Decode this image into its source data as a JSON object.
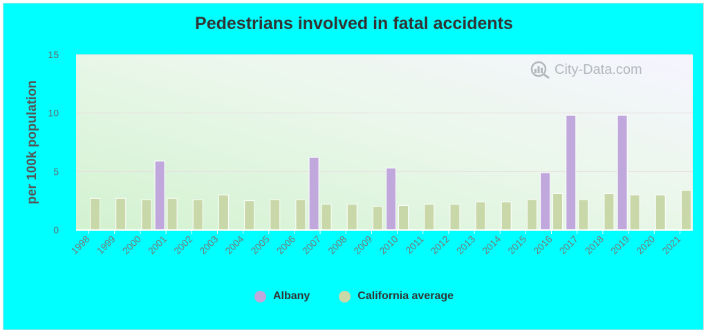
{
  "chart_data": {
    "type": "bar",
    "title": "Pedestrians involved in fatal accidents",
    "ylabel": "per 100k population",
    "xlabel": "",
    "ylim": [
      0,
      15
    ],
    "yticks": [
      "0",
      "5",
      "10",
      "15"
    ],
    "categories": [
      "1998",
      "1999",
      "2000",
      "2001",
      "2002",
      "2003",
      "2004",
      "2005",
      "2006",
      "2007",
      "2008",
      "2009",
      "2010",
      "2011",
      "2012",
      "2013",
      "2014",
      "2015",
      "2016",
      "2017",
      "2018",
      "2019",
      "2020",
      "2021"
    ],
    "series": [
      {
        "name": "Albany",
        "color": "#c0a8dc",
        "values": [
          null,
          null,
          null,
          5.9,
          null,
          null,
          null,
          null,
          null,
          6.2,
          null,
          null,
          5.3,
          null,
          null,
          null,
          null,
          null,
          4.9,
          9.8,
          null,
          9.8,
          null,
          null
        ]
      },
      {
        "name": "California average",
        "color": "#c8d8a8",
        "values": [
          2.7,
          2.7,
          2.6,
          2.7,
          2.6,
          3.0,
          2.5,
          2.6,
          2.6,
          2.2,
          2.2,
          2.0,
          2.1,
          2.2,
          2.2,
          2.4,
          2.4,
          2.6,
          3.1,
          2.6,
          3.1,
          3.0,
          3.0,
          3.4
        ]
      }
    ],
    "grid": true,
    "legend_position": "bottom"
  },
  "watermark": "City-Data.com",
  "colors": {
    "background": "#00ffff"
  }
}
